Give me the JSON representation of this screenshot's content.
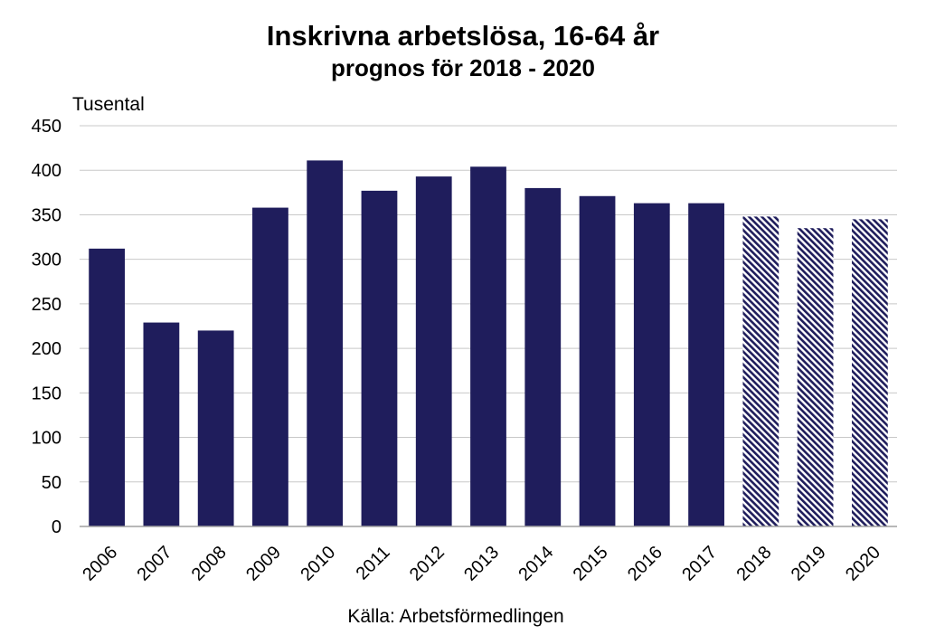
{
  "chart_data": {
    "type": "bar",
    "title": "Inskrivna arbetslösa, 16-64 år",
    "subtitle": "prognos för 2018 - 2020",
    "ylabel": "Tusental",
    "source": "Källa: Arbetsförmedlingen",
    "categories": [
      "2006",
      "2007",
      "2008",
      "2009",
      "2010",
      "2011",
      "2012",
      "2013",
      "2014",
      "2015",
      "2016",
      "2017",
      "2018",
      "2019",
      "2020"
    ],
    "values": [
      312,
      229,
      220,
      358,
      411,
      377,
      393,
      404,
      380,
      371,
      363,
      363,
      348,
      335,
      345
    ],
    "forecast": [
      false,
      false,
      false,
      false,
      false,
      false,
      false,
      false,
      false,
      false,
      false,
      false,
      true,
      true,
      true
    ],
    "ylim": [
      0,
      450
    ],
    "yticks": [
      0,
      50,
      100,
      150,
      200,
      250,
      300,
      350,
      400,
      450
    ],
    "grid": true,
    "legend": "none",
    "colors": {
      "bar": "#1f1d5c",
      "forecast_hatch": "#1f1d5c",
      "grid": "#c8c8c8",
      "axis": "#a0a0a0"
    }
  }
}
